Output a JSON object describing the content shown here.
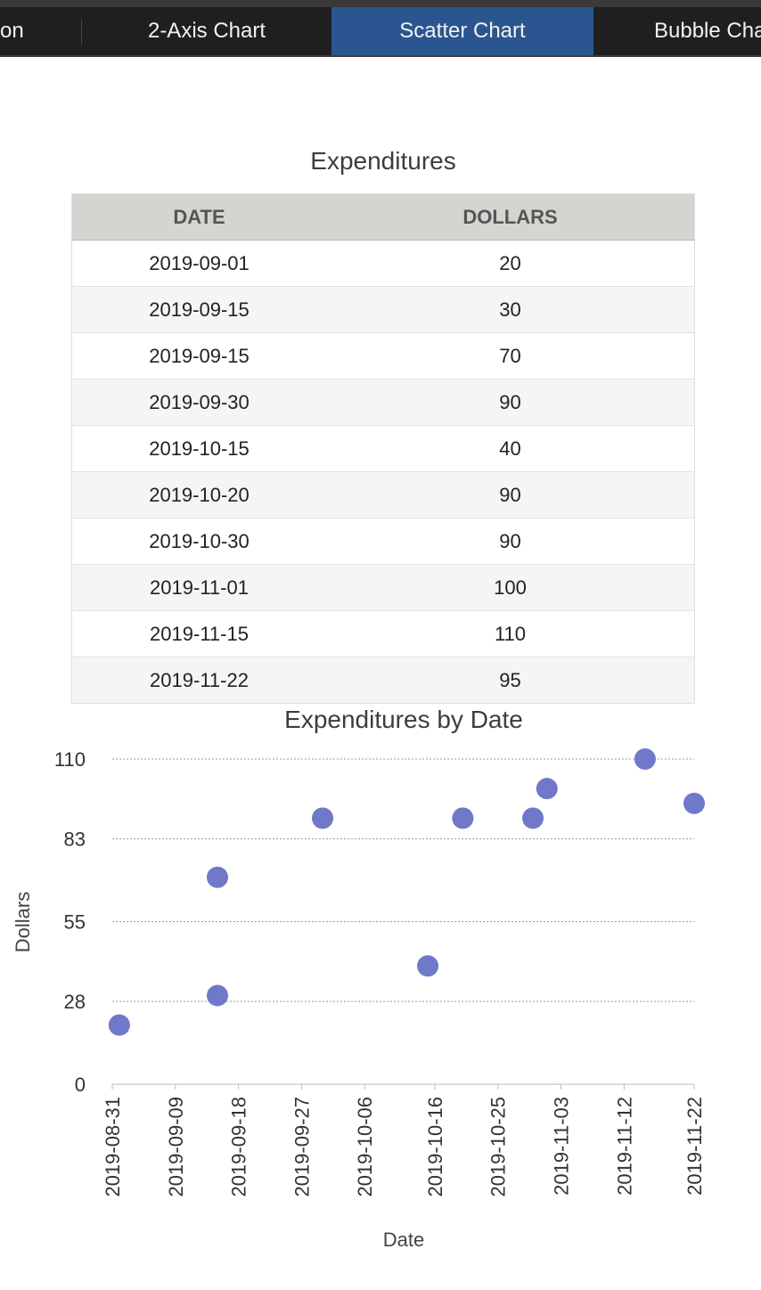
{
  "tabs": [
    {
      "label": "on",
      "active": false
    },
    {
      "label": "2-Axis Chart",
      "active": false
    },
    {
      "label": "Scatter Chart",
      "active": true
    },
    {
      "label": "Bubble Cha",
      "active": false
    }
  ],
  "table": {
    "title": "Expenditures",
    "headers": [
      "DATE",
      "DOLLARS"
    ],
    "rows": [
      [
        "2019-09-01",
        "20"
      ],
      [
        "2019-09-15",
        "30"
      ],
      [
        "2019-09-15",
        "70"
      ],
      [
        "2019-09-30",
        "90"
      ],
      [
        "2019-10-15",
        "40"
      ],
      [
        "2019-10-20",
        "90"
      ],
      [
        "2019-10-30",
        "90"
      ],
      [
        "2019-11-01",
        "100"
      ],
      [
        "2019-11-15",
        "110"
      ],
      [
        "2019-11-22",
        "95"
      ]
    ]
  },
  "chart_data": {
    "type": "scatter",
    "title": "Expenditures by Date",
    "xlabel": "Date",
    "ylabel": "Dollars",
    "x": [
      "2019-09-01",
      "2019-09-15",
      "2019-09-15",
      "2019-09-30",
      "2019-10-15",
      "2019-10-20",
      "2019-10-30",
      "2019-11-01",
      "2019-11-15",
      "2019-11-22"
    ],
    "y": [
      20,
      30,
      70,
      90,
      40,
      90,
      90,
      100,
      110,
      95
    ],
    "xlim": [
      "2019-08-31",
      "2019-11-22"
    ],
    "ylim": [
      0,
      110
    ],
    "x_ticks": [
      "2019-08-31",
      "2019-09-09",
      "2019-09-18",
      "2019-09-27",
      "2019-10-06",
      "2019-10-16",
      "2019-10-25",
      "2019-11-03",
      "2019-11-12",
      "2019-11-22"
    ],
    "y_ticks": [
      "0",
      "28",
      "55",
      "83",
      "110"
    ],
    "grid": true,
    "marker_color": "#7078c8"
  }
}
